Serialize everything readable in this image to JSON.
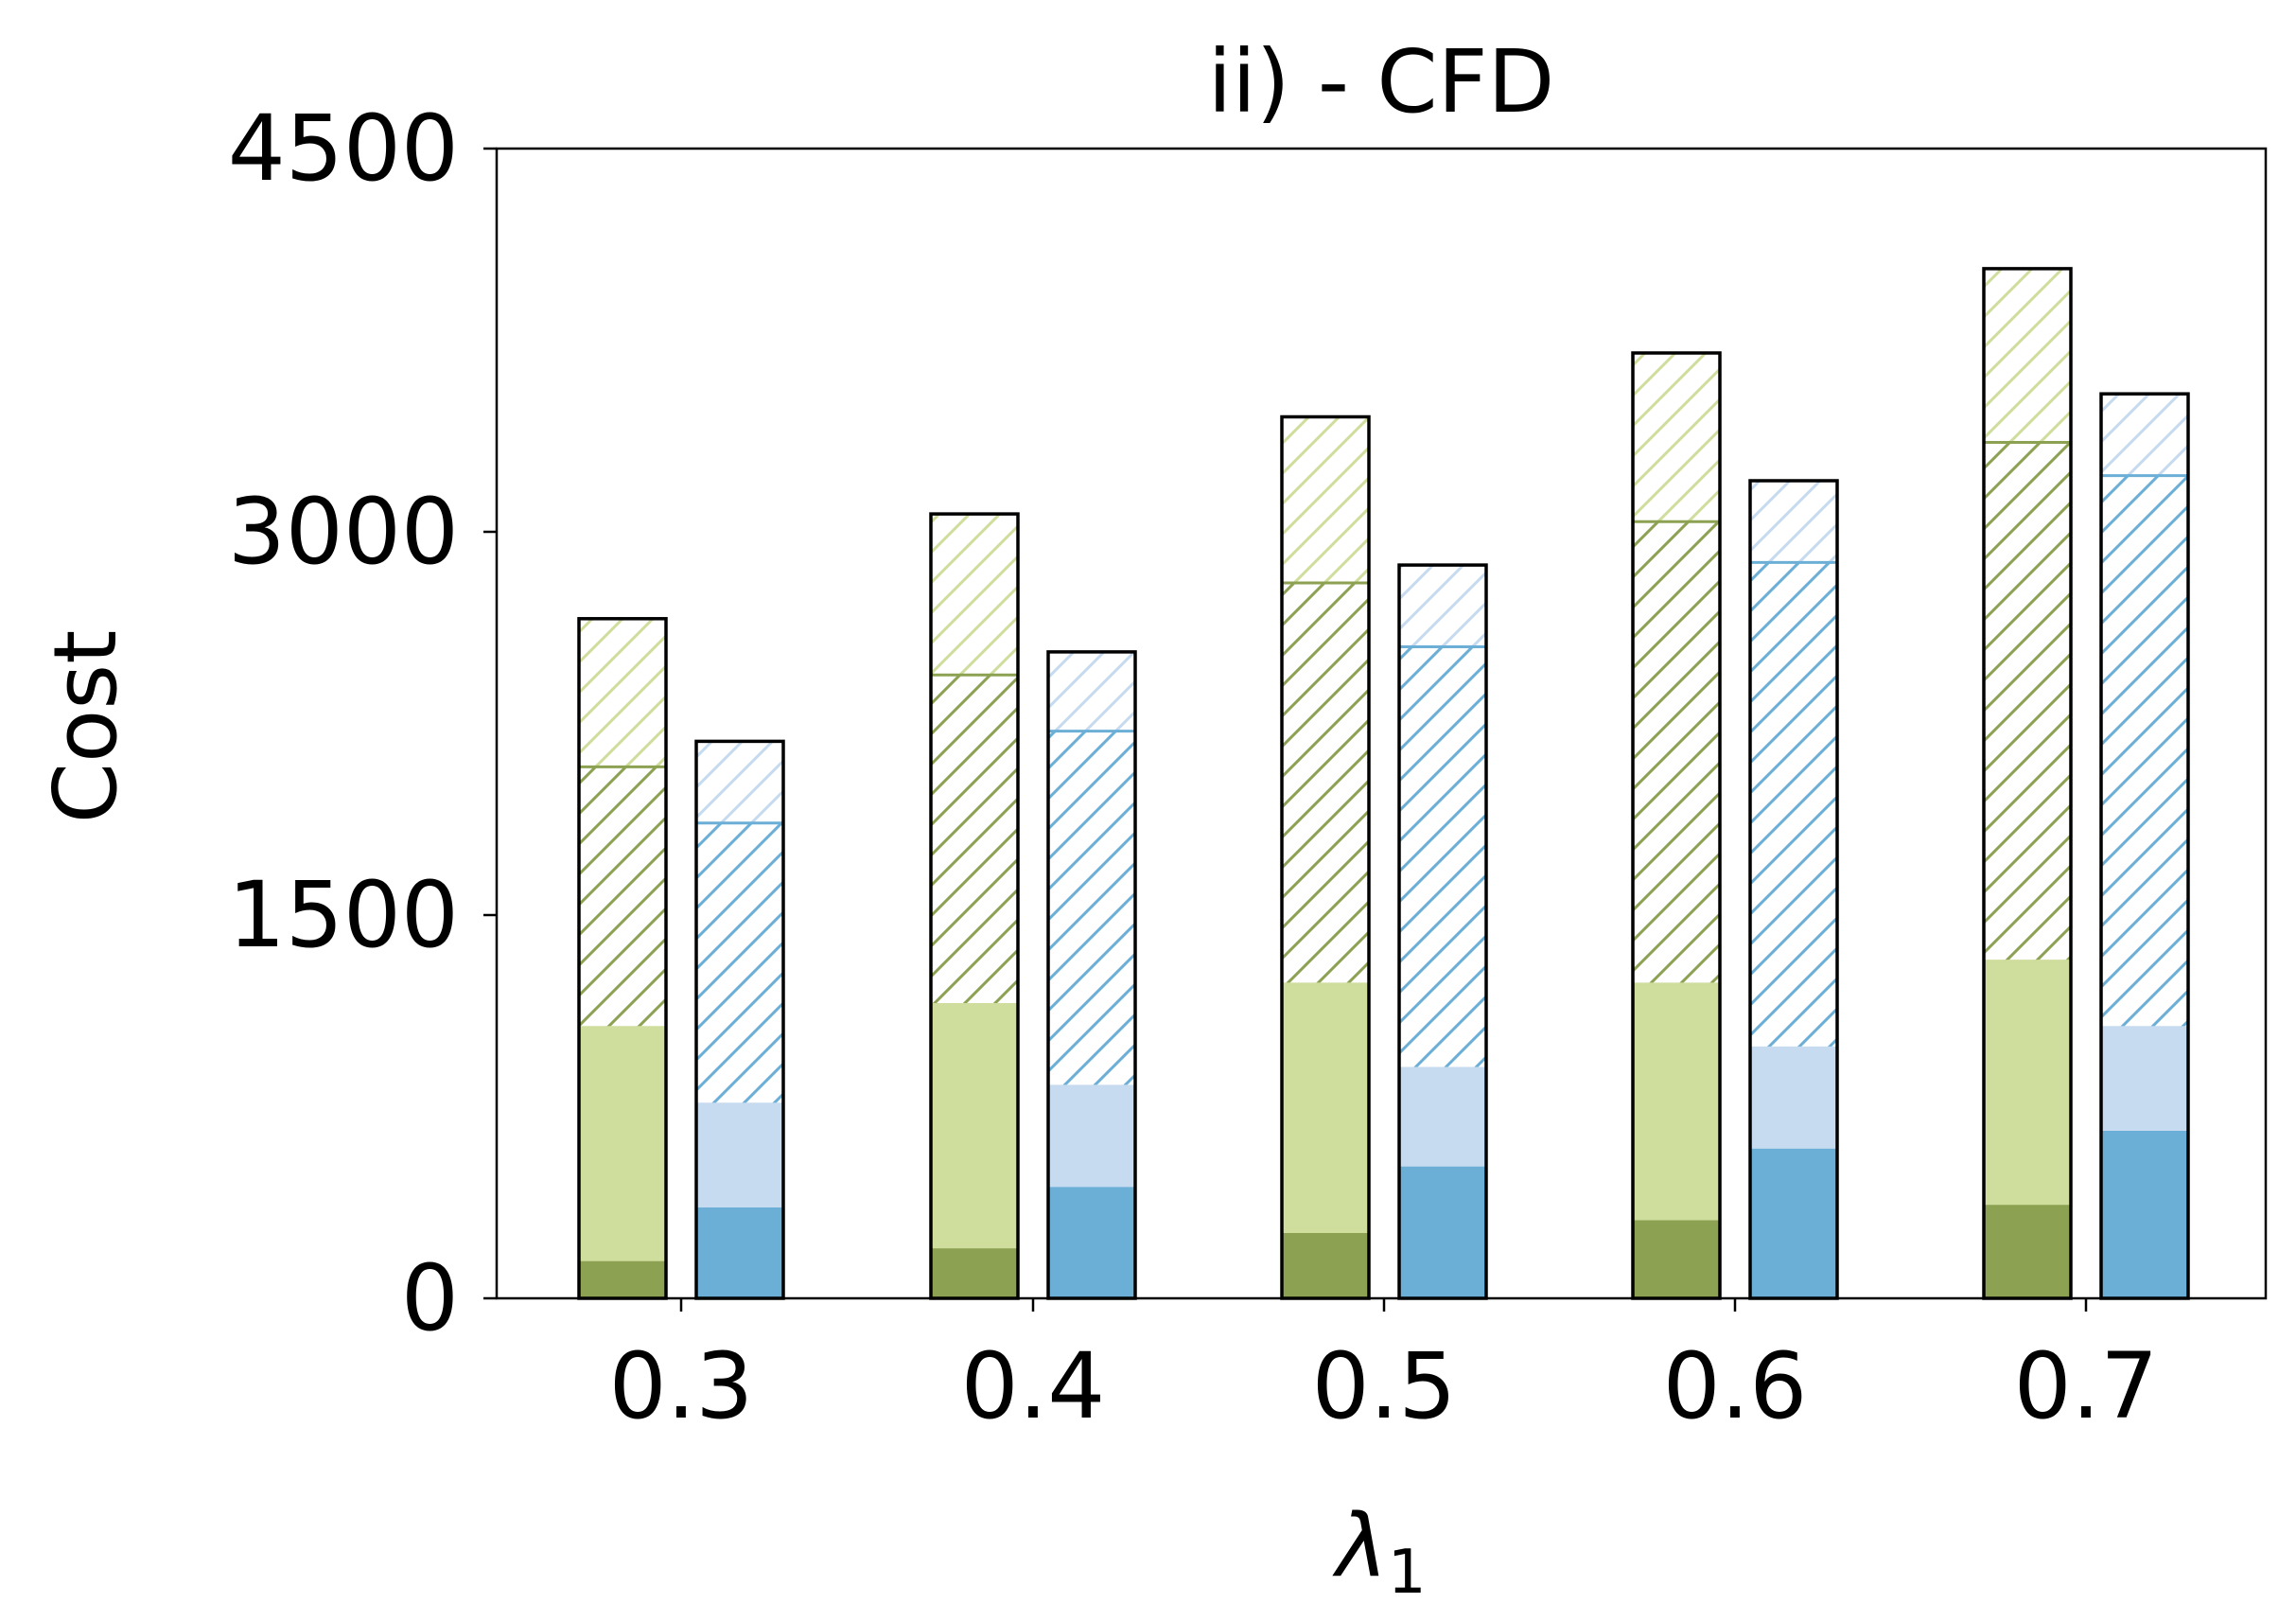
{
  "chart_data": {
    "type": "bar",
    "title": "ii) - CFD",
    "xlabel": "λ",
    "xlabel_subscript": "1",
    "ylabel": "Cost",
    "ylim": [
      0,
      4500
    ],
    "yticks": [
      0,
      1500,
      3000,
      4500
    ],
    "categories": [
      "0.3",
      "0.4",
      "0.5",
      "0.6",
      "0.7"
    ],
    "grid": false,
    "legend": "none",
    "groups": [
      {
        "color_theme": "green",
        "segments": [
          {
            "color": "#8ca252",
            "hatch": false,
            "values": [
              140,
              190,
              250,
              300,
              360
            ]
          },
          {
            "color": "#cfdd9d",
            "hatch": false,
            "values": [
              920,
              960,
              980,
              930,
              960
            ]
          },
          {
            "color": "#8ca252",
            "hatch": true,
            "values": [
              1020,
              1290,
              1570,
              1810,
              2030
            ]
          },
          {
            "color": "#cfdd9d",
            "hatch": true,
            "values": [
              580,
              630,
              650,
              660,
              680
            ]
          }
        ],
        "totals": [
          2660,
          3070,
          3450,
          3700,
          4030
        ]
      },
      {
        "color_theme": "blue",
        "segments": [
          {
            "color": "#6baed6",
            "hatch": false,
            "values": [
              350,
              430,
              510,
              580,
              650
            ]
          },
          {
            "color": "#c6dbef",
            "hatch": false,
            "values": [
              410,
              400,
              390,
              400,
              410
            ]
          },
          {
            "color": "#6baed6",
            "hatch": true,
            "values": [
              1100,
              1390,
              1650,
              1900,
              2160
            ]
          },
          {
            "color": "#c6dbef",
            "hatch": true,
            "values": [
              320,
              310,
              320,
              320,
              320
            ]
          }
        ],
        "totals": [
          2180,
          2530,
          2870,
          3200,
          3540
        ]
      }
    ]
  }
}
